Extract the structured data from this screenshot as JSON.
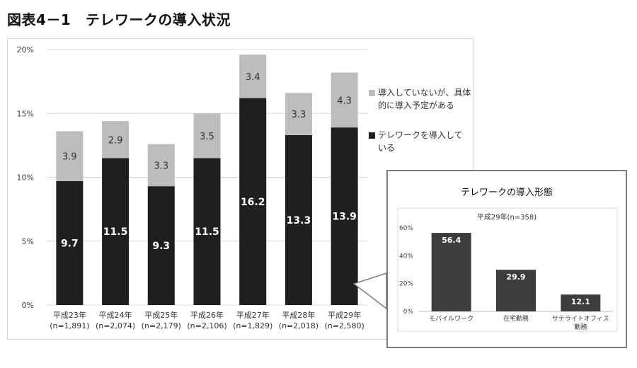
{
  "page": {
    "title": "図表4－1　テレワークの導入状況"
  },
  "chart_data": [
    {
      "type": "bar",
      "stacked": true,
      "title": "",
      "categories": [
        "平成23年",
        "平成24年",
        "平成25年",
        "平成26年",
        "平成27年",
        "平成28年",
        "平成29年"
      ],
      "category_sublabels": [
        "(n=1,891)",
        "(n=2,074)",
        "(n=2,179)",
        "(n=2,106)",
        "(n=1,829)",
        "(n=2,018)",
        "(n=2,580)"
      ],
      "series": [
        {
          "name": "テレワークを導入している",
          "color": "#1f1f1f",
          "label_color": "#ffffff",
          "values": [
            9.7,
            11.5,
            9.3,
            11.5,
            16.2,
            13.3,
            13.9
          ]
        },
        {
          "name": "導入していないが、具体的に導入予定がある",
          "color": "#bdbdbd",
          "label_color": "#333333",
          "values": [
            3.9,
            2.9,
            3.3,
            3.5,
            3.4,
            3.3,
            4.3
          ]
        }
      ],
      "ylim": [
        0,
        20
      ],
      "yticks": [
        "0%",
        "5%",
        "10%",
        "15%",
        "20%"
      ],
      "grid": true,
      "legend_placement": "right"
    },
    {
      "type": "bar",
      "title": "テレワークの導入形態",
      "subtitle": "平成29年(n=358)",
      "categories": [
        "モバイルワーク",
        "在宅勤務",
        "サテライトオフィス勤務"
      ],
      "values": [
        56.4,
        29.9,
        12.1
      ],
      "color": "#3d3d3d",
      "ylim": [
        0,
        60
      ],
      "yticks": [
        "0%",
        "20%",
        "40%",
        "60%"
      ],
      "grid": false
    }
  ]
}
